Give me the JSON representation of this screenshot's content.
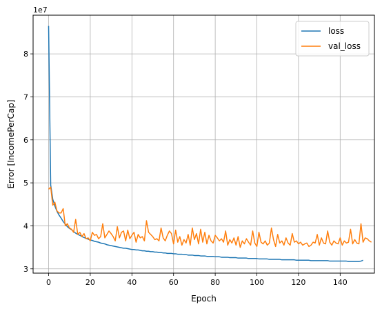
{
  "chart_data": {
    "type": "line",
    "title": "",
    "xlabel": "Epoch",
    "ylabel": "Error [IncomePerCap]",
    "y_offset_label": "1e7",
    "xlim": [
      -7.45,
      156.45
    ],
    "ylim": [
      2.9,
      8.9
    ],
    "x_ticks": [
      0,
      20,
      40,
      60,
      80,
      100,
      120,
      140
    ],
    "y_ticks": [
      3,
      4,
      5,
      6,
      7,
      8
    ],
    "grid": true,
    "legend_position": "top-right",
    "series": [
      {
        "name": "loss",
        "color": "#1f77b4",
        "values": [
          8.65,
          4.95,
          4.62,
          4.46,
          4.34,
          4.25,
          4.18,
          4.1,
          4.04,
          3.98,
          3.94,
          3.91,
          3.87,
          3.83,
          3.8,
          3.78,
          3.75,
          3.73,
          3.71,
          3.69,
          3.67,
          3.66,
          3.64,
          3.63,
          3.62,
          3.6,
          3.59,
          3.58,
          3.56,
          3.55,
          3.54,
          3.53,
          3.52,
          3.51,
          3.5,
          3.49,
          3.48,
          3.48,
          3.47,
          3.46,
          3.45,
          3.45,
          3.44,
          3.44,
          3.43,
          3.42,
          3.42,
          3.41,
          3.41,
          3.4,
          3.4,
          3.39,
          3.39,
          3.38,
          3.38,
          3.37,
          3.37,
          3.36,
          3.36,
          3.36,
          3.35,
          3.35,
          3.34,
          3.34,
          3.34,
          3.33,
          3.33,
          3.32,
          3.32,
          3.32,
          3.31,
          3.31,
          3.31,
          3.3,
          3.3,
          3.3,
          3.29,
          3.29,
          3.29,
          3.29,
          3.28,
          3.28,
          3.28,
          3.27,
          3.27,
          3.27,
          3.27,
          3.26,
          3.26,
          3.26,
          3.26,
          3.25,
          3.25,
          3.25,
          3.25,
          3.25,
          3.24,
          3.24,
          3.24,
          3.24,
          3.24,
          3.23,
          3.23,
          3.23,
          3.23,
          3.23,
          3.22,
          3.22,
          3.22,
          3.22,
          3.22,
          3.22,
          3.21,
          3.21,
          3.21,
          3.21,
          3.21,
          3.21,
          3.21,
          3.2,
          3.2,
          3.2,
          3.2,
          3.2,
          3.2,
          3.2,
          3.19,
          3.19,
          3.19,
          3.19,
          3.19,
          3.19,
          3.19,
          3.19,
          3.19,
          3.18,
          3.18,
          3.18,
          3.18,
          3.18,
          3.18,
          3.18,
          3.18,
          3.18,
          3.17,
          3.17,
          3.17,
          3.17,
          3.17,
          3.17,
          3.18,
          3.2
        ]
      },
      {
        "name": "val_loss",
        "color": "#ff7f0e",
        "values": [
          4.85,
          4.9,
          4.48,
          4.55,
          4.35,
          4.3,
          4.3,
          4.4,
          4.0,
          4.05,
          3.95,
          3.92,
          3.85,
          4.15,
          3.8,
          3.85,
          3.75,
          3.82,
          3.7,
          3.72,
          3.65,
          3.85,
          3.78,
          3.8,
          3.7,
          3.75,
          4.05,
          3.72,
          3.8,
          3.88,
          3.82,
          3.75,
          3.65,
          3.98,
          3.72,
          3.85,
          3.88,
          3.65,
          3.9,
          3.7,
          3.78,
          3.85,
          3.62,
          3.8,
          3.72,
          3.75,
          3.65,
          4.12,
          3.85,
          3.8,
          3.75,
          3.68,
          3.7,
          3.65,
          3.95,
          3.72,
          3.65,
          3.78,
          3.88,
          3.82,
          3.58,
          3.9,
          3.62,
          3.75,
          3.55,
          3.68,
          3.6,
          3.8,
          3.55,
          3.95,
          3.68,
          3.82,
          3.58,
          3.92,
          3.62,
          3.85,
          3.58,
          3.78,
          3.65,
          3.6,
          3.78,
          3.72,
          3.65,
          3.7,
          3.62,
          3.88,
          3.55,
          3.68,
          3.6,
          3.72,
          3.55,
          3.75,
          3.5,
          3.65,
          3.58,
          3.7,
          3.62,
          3.55,
          3.88,
          3.6,
          3.52,
          3.85,
          3.62,
          3.58,
          3.65,
          3.55,
          3.6,
          3.95,
          3.68,
          3.52,
          3.8,
          3.6,
          3.65,
          3.55,
          3.72,
          3.6,
          3.55,
          3.82,
          3.62,
          3.65,
          3.58,
          3.62,
          3.55,
          3.58,
          3.6,
          3.52,
          3.55,
          3.62,
          3.6,
          3.8,
          3.55,
          3.72,
          3.6,
          3.58,
          3.88,
          3.62,
          3.55,
          3.65,
          3.6,
          3.58,
          3.72,
          3.55,
          3.65,
          3.6,
          3.62,
          3.92,
          3.58,
          3.68,
          3.6,
          3.58,
          4.05,
          3.62,
          3.72,
          3.7,
          3.65,
          3.62
        ]
      }
    ]
  }
}
